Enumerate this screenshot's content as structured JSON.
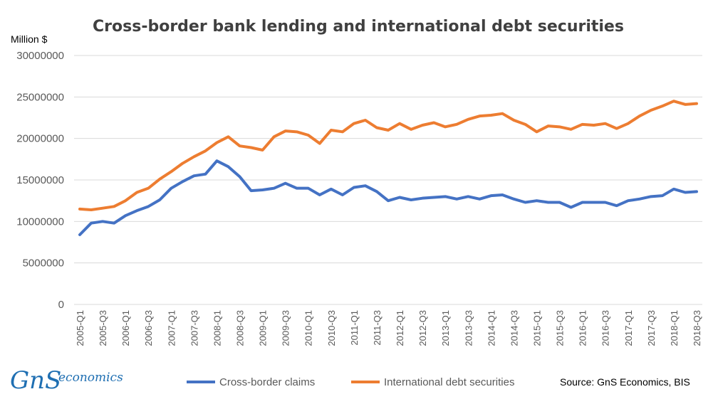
{
  "chart_data": {
    "type": "line",
    "title": "Cross-border bank lending and international debt securities",
    "ylabel": "Million $",
    "xlabel": "",
    "ylim": [
      0,
      30000000
    ],
    "yticks": [
      "0",
      "5000000",
      "10000000",
      "15000000",
      "20000000",
      "25000000",
      "30000000"
    ],
    "grid": "horizontal",
    "legend": "bottom",
    "x": [
      "2005-Q1",
      "2005-Q2",
      "2005-Q3",
      "2005-Q4",
      "2006-Q1",
      "2006-Q2",
      "2006-Q3",
      "2006-Q4",
      "2007-Q1",
      "2007-Q2",
      "2007-Q3",
      "2007-Q4",
      "2008-Q1",
      "2008-Q2",
      "2008-Q3",
      "2008-Q4",
      "2009-Q1",
      "2009-Q2",
      "2009-Q3",
      "2009-Q4",
      "2010-Q1",
      "2010-Q2",
      "2010-Q3",
      "2010-Q4",
      "2011-Q1",
      "2011-Q2",
      "2011-Q3",
      "2011-Q4",
      "2012-Q1",
      "2012-Q2",
      "2012-Q3",
      "2012-Q4",
      "2013-Q1",
      "2013-Q2",
      "2013-Q3",
      "2013-Q4",
      "2014-Q1",
      "2014-Q2",
      "2014-Q3",
      "2014-Q4",
      "2015-Q1",
      "2015-Q2",
      "2015-Q3",
      "2015-Q4",
      "2016-Q1",
      "2016-Q2",
      "2016-Q3",
      "2016-Q4",
      "2017-Q1",
      "2017-Q2",
      "2017-Q3",
      "2017-Q4",
      "2018-Q1",
      "2018-Q2",
      "2018-Q3"
    ],
    "xticks": [
      "2005-Q1",
      "2005-Q3",
      "2006-Q1",
      "2006-Q3",
      "2007-Q1",
      "2007-Q3",
      "2008-Q1",
      "2008-Q3",
      "2009-Q1",
      "2009-Q3",
      "2010-Q1",
      "2010-Q3",
      "2011-Q1",
      "2011-Q3",
      "2012-Q1",
      "2012-Q3",
      "2013-Q1",
      "2013-Q3",
      "2014-Q1",
      "2014-Q3",
      "2015-Q1",
      "2015-Q3",
      "2016-Q1",
      "2016-Q3",
      "2017-Q1",
      "2017-Q3",
      "2018-Q1",
      "2018-Q3"
    ],
    "series": [
      {
        "name": "Cross-border claims",
        "color": "#4472c4",
        "values": [
          8400000,
          9800000,
          10000000,
          9800000,
          10700000,
          11300000,
          11800000,
          12600000,
          14000000,
          14800000,
          15500000,
          15700000,
          17300000,
          16600000,
          15400000,
          13700000,
          13800000,
          14000000,
          14600000,
          14000000,
          14000000,
          13200000,
          13900000,
          13200000,
          14100000,
          14300000,
          13600000,
          12500000,
          12900000,
          12600000,
          12800000,
          12900000,
          13000000,
          12700000,
          13000000,
          12700000,
          13100000,
          13200000,
          12700000,
          12300000,
          12500000,
          12300000,
          12300000,
          11700000,
          12300000,
          12300000,
          12300000,
          11900000,
          12500000,
          12700000,
          13000000,
          13100000,
          13900000,
          13500000,
          13600000
        ]
      },
      {
        "name": "International debt securities",
        "color": "#ed7d31",
        "values": [
          11500000,
          11400000,
          11600000,
          11800000,
          12500000,
          13500000,
          14000000,
          15100000,
          16000000,
          17000000,
          17800000,
          18500000,
          19500000,
          20200000,
          19100000,
          18900000,
          18600000,
          20200000,
          20900000,
          20800000,
          20400000,
          19400000,
          21000000,
          20800000,
          21800000,
          22200000,
          21300000,
          21000000,
          21800000,
          21100000,
          21600000,
          21900000,
          21400000,
          21700000,
          22300000,
          22700000,
          22800000,
          23000000,
          22200000,
          21700000,
          20800000,
          21500000,
          21400000,
          21100000,
          21700000,
          21600000,
          21800000,
          21200000,
          21800000,
          22700000,
          23400000,
          23900000,
          24500000,
          24100000,
          24200000
        ]
      }
    ],
    "source": "Source: GnS Economics, BIS"
  },
  "logo": {
    "mark": "GnS",
    "text": "economics"
  }
}
